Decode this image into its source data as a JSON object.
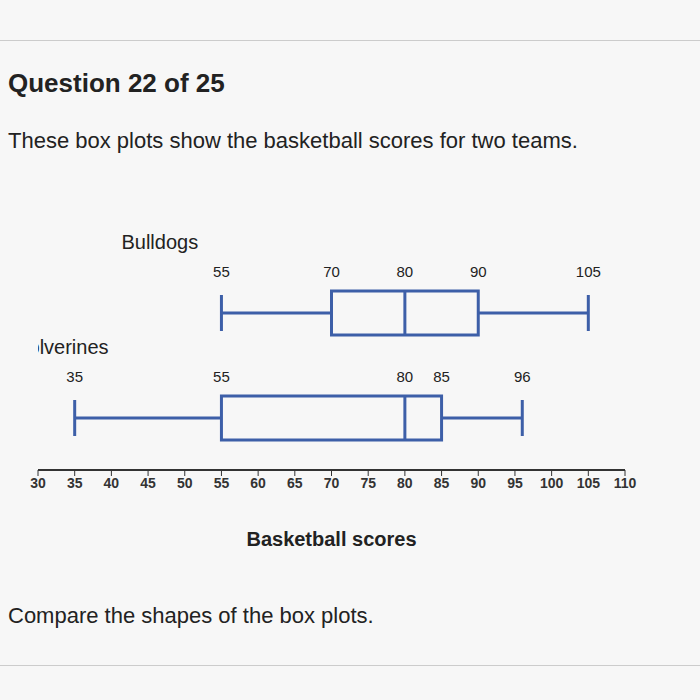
{
  "header": "Question 22 of 25",
  "question": "These box plots show the basketball scores for two teams.",
  "prompt": "Compare the shapes of the box plots.",
  "chart_data": {
    "type": "box",
    "orientation": "horizontal",
    "color": "#3d5fa8",
    "data_labels": true,
    "xlabel": "Basketball scores",
    "xlim": [
      30,
      110
    ],
    "xticks": [
      30,
      35,
      40,
      45,
      50,
      55,
      60,
      65,
      70,
      75,
      80,
      85,
      90,
      95,
      100,
      105,
      110
    ],
    "series": [
      {
        "name": "Bulldogs",
        "min": 55,
        "q1": 70,
        "median": 80,
        "q3": 90,
        "max": 105
      },
      {
        "name": "Wolverines",
        "min": 35,
        "q1": 55,
        "median": 80,
        "q3": 85,
        "max": 96
      }
    ]
  }
}
